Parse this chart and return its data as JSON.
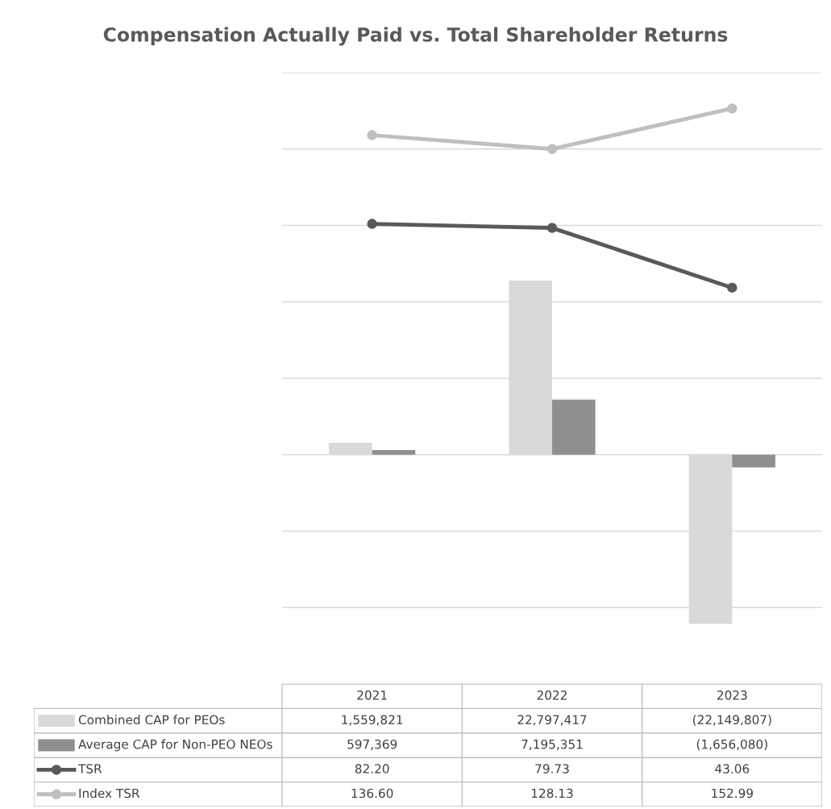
{
  "chart_data": {
    "type": "bar",
    "title": "Compensation Actually Paid vs. Total Shareholder Returns",
    "categories": [
      "2021",
      "2022",
      "2023"
    ],
    "series": [
      {
        "name": "Combined CAP for PEOs",
        "color": "#d9d9d9",
        "values": [
          1559821,
          22797417,
          -22149807
        ],
        "value_labels": [
          "1,559,821",
          "22,797,417",
          "(22,149,807)"
        ]
      },
      {
        "name": "Average CAP for Non-PEO NEOs",
        "color": "#8f8f8f",
        "values": [
          597369,
          7195351,
          -1656080
        ],
        "value_labels": [
          "597,369",
          "7,195,351",
          "(1,656,080)"
        ]
      },
      {
        "name": "TSR",
        "type": "line",
        "axis": "y2",
        "color": "#595959",
        "values": [
          82.2,
          79.73,
          43.06
        ],
        "value_labels": [
          "82.20",
          "79.73",
          "43.06"
        ]
      },
      {
        "name": "Index TSR",
        "type": "line",
        "axis": "y2",
        "color": "#bfbfbf",
        "values": [
          136.6,
          128.13,
          152.99
        ],
        "value_labels": [
          "136.60",
          "128.13",
          "152.99"
        ]
      }
    ],
    "ylim": [
      -30000000,
      50000000
    ],
    "yticks": [
      {
        "value": -30000000,
        "label": null
      },
      {
        "value": -20000000,
        "label": null
      },
      {
        "value": -10000000,
        "label": null
      },
      {
        "value": 0,
        "label": null
      },
      {
        "value": 10000000,
        "label": null
      },
      {
        "value": 20000000,
        "label": null
      },
      {
        "value": 30000000,
        "label": null
      },
      {
        "value": 40000000,
        "label": null
      },
      {
        "value": 50000000,
        "label": null
      }
    ],
    "y2lim": [
      -200,
      175
    ],
    "tick_labels": false,
    "grid": "y",
    "legend": "bottom",
    "marker": "circle",
    "line_style": "solid"
  }
}
